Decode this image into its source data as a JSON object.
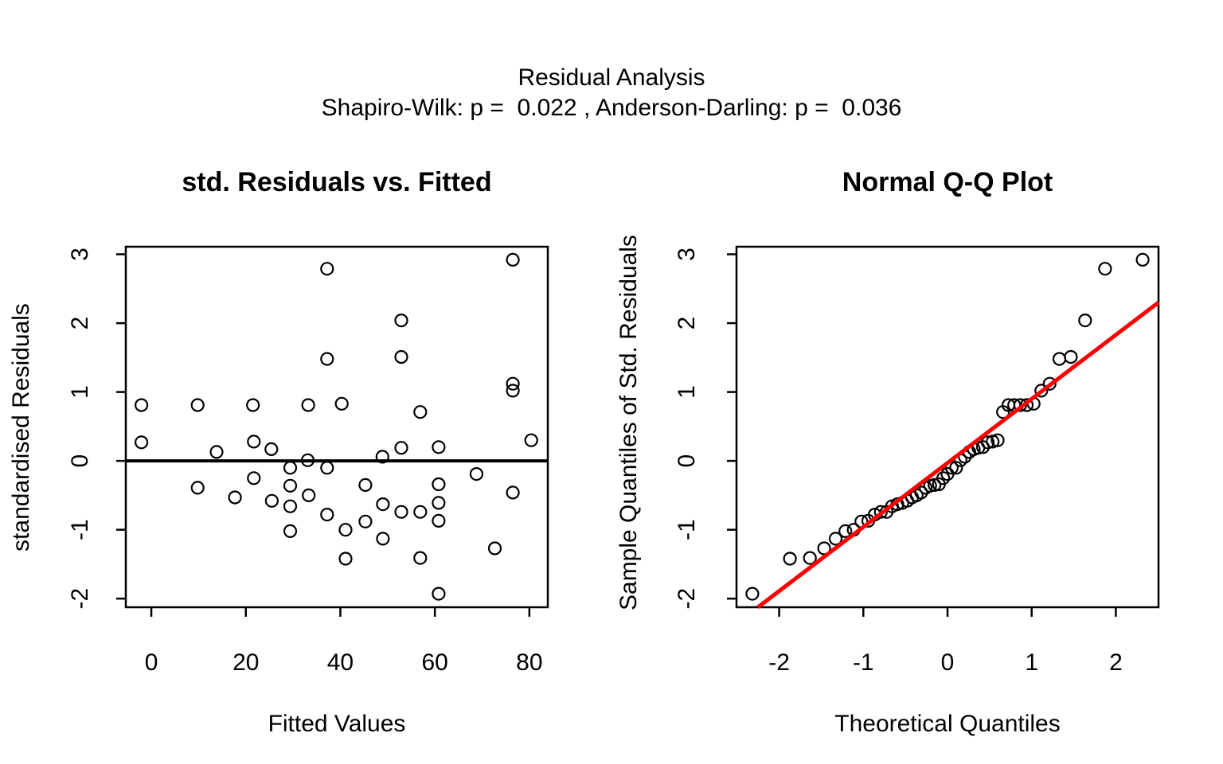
{
  "header": {
    "title": "Residual Analysis",
    "subtitle": "Shapiro-Wilk: p =  0.022 , Anderson-Darling: p =  0.036",
    "shapiro_wilk_p": "0.022",
    "anderson_darling_p": "0.036"
  },
  "colors": {
    "background": "#FFFFFF",
    "point_stroke": "#000000",
    "axis": "#000000",
    "zero_line": "#000000",
    "qq_line": "#FF0000"
  },
  "chart_data": [
    {
      "type": "scatter",
      "title": "std. Residuals vs. Fitted",
      "xlabel": "Fitted Values",
      "ylabel": "standardised Residuals",
      "xlim": [
        -5.4,
        83.9
      ],
      "ylim": [
        -2.125,
        3.11
      ],
      "xticks": [
        0,
        20,
        40,
        60,
        80
      ],
      "yticks": [
        -2,
        -1,
        0,
        1,
        2,
        3
      ],
      "grid": false,
      "zero_line_y": 0,
      "points": [
        [
          -2.1,
          0.81
        ],
        [
          -2.1,
          0.27
        ],
        [
          9.8,
          0.81
        ],
        [
          9.8,
          -0.39
        ],
        [
          13.8,
          0.13
        ],
        [
          17.7,
          -0.53
        ],
        [
          21.5,
          0.81
        ],
        [
          21.7,
          0.28
        ],
        [
          21.7,
          -0.25
        ],
        [
          25.4,
          0.17
        ],
        [
          25.5,
          -0.58
        ],
        [
          29.4,
          -0.1
        ],
        [
          29.4,
          -0.36
        ],
        [
          29.4,
          -0.66
        ],
        [
          29.4,
          -1.02
        ],
        [
          33.2,
          0.81
        ],
        [
          33.1,
          0.01
        ],
        [
          33.3,
          -0.5
        ],
        [
          37.2,
          2.79
        ],
        [
          37.2,
          1.48
        ],
        [
          37.2,
          -0.1
        ],
        [
          37.2,
          -0.78
        ],
        [
          40.3,
          0.83
        ],
        [
          41.1,
          -1.0
        ],
        [
          41.1,
          -1.42
        ],
        [
          45.3,
          -0.35
        ],
        [
          45.3,
          -0.88
        ],
        [
          48.9,
          0.06
        ],
        [
          49.0,
          -0.63
        ],
        [
          49.0,
          -1.13
        ],
        [
          52.9,
          2.04
        ],
        [
          52.9,
          1.51
        ],
        [
          52.9,
          0.19
        ],
        [
          52.9,
          -0.74
        ],
        [
          56.9,
          0.71
        ],
        [
          56.9,
          -0.74
        ],
        [
          56.9,
          -1.41
        ],
        [
          60.8,
          0.2
        ],
        [
          60.8,
          -0.34
        ],
        [
          60.8,
          -0.61
        ],
        [
          60.8,
          -0.87
        ],
        [
          60.8,
          -1.93
        ],
        [
          68.8,
          -0.19
        ],
        [
          72.7,
          -1.27
        ],
        [
          76.5,
          2.92
        ],
        [
          76.5,
          1.12
        ],
        [
          76.5,
          1.02
        ],
        [
          76.5,
          -0.46
        ],
        [
          80.4,
          0.3
        ]
      ]
    },
    {
      "type": "scatter",
      "title": "Normal Q-Q Plot",
      "xlabel": "Theoretical Quantiles",
      "ylabel": "Sample Quantiles of Std. Residuals",
      "xlim": [
        -2.507,
        2.507
      ],
      "ylim": [
        -2.125,
        3.11
      ],
      "xticks": [
        -2,
        -1,
        0,
        1,
        2
      ],
      "yticks": [
        -2,
        -1,
        0,
        1,
        2,
        3
      ],
      "grid": false,
      "ref_line": {
        "slope": 0.93,
        "intercept": -0.03,
        "color": "#FF0000"
      },
      "points": [
        [
          -2.319,
          -1.93
        ],
        [
          -1.872,
          -1.42
        ],
        [
          -1.635,
          -1.41
        ],
        [
          -1.465,
          -1.27
        ],
        [
          -1.329,
          -1.13
        ],
        [
          -1.214,
          -1.02
        ],
        [
          -1.114,
          -1.0
        ],
        [
          -1.024,
          -0.88
        ],
        [
          -0.941,
          -0.87
        ],
        [
          -0.865,
          -0.78
        ],
        [
          -0.792,
          -0.74
        ],
        [
          -0.724,
          -0.74
        ],
        [
          -0.659,
          -0.66
        ],
        [
          -0.596,
          -0.63
        ],
        [
          -0.536,
          -0.61
        ],
        [
          -0.478,
          -0.58
        ],
        [
          -0.421,
          -0.53
        ],
        [
          -0.366,
          -0.5
        ],
        [
          -0.312,
          -0.46
        ],
        [
          -0.259,
          -0.39
        ],
        [
          -0.206,
          -0.36
        ],
        [
          -0.154,
          -0.35
        ],
        [
          -0.102,
          -0.34
        ],
        [
          -0.051,
          -0.25
        ],
        [
          0.0,
          -0.19
        ],
        [
          0.051,
          -0.1
        ],
        [
          0.102,
          -0.1
        ],
        [
          0.154,
          0.01
        ],
        [
          0.206,
          0.06
        ],
        [
          0.259,
          0.13
        ],
        [
          0.312,
          0.17
        ],
        [
          0.366,
          0.19
        ],
        [
          0.421,
          0.2
        ],
        [
          0.478,
          0.27
        ],
        [
          0.536,
          0.28
        ],
        [
          0.596,
          0.3
        ],
        [
          0.659,
          0.71
        ],
        [
          0.724,
          0.81
        ],
        [
          0.792,
          0.81
        ],
        [
          0.865,
          0.81
        ],
        [
          0.941,
          0.81
        ],
        [
          1.024,
          0.83
        ],
        [
          1.114,
          1.02
        ],
        [
          1.214,
          1.12
        ],
        [
          1.329,
          1.48
        ],
        [
          1.465,
          1.51
        ],
        [
          1.635,
          2.04
        ],
        [
          1.872,
          2.79
        ],
        [
          2.319,
          2.92
        ]
      ]
    }
  ]
}
